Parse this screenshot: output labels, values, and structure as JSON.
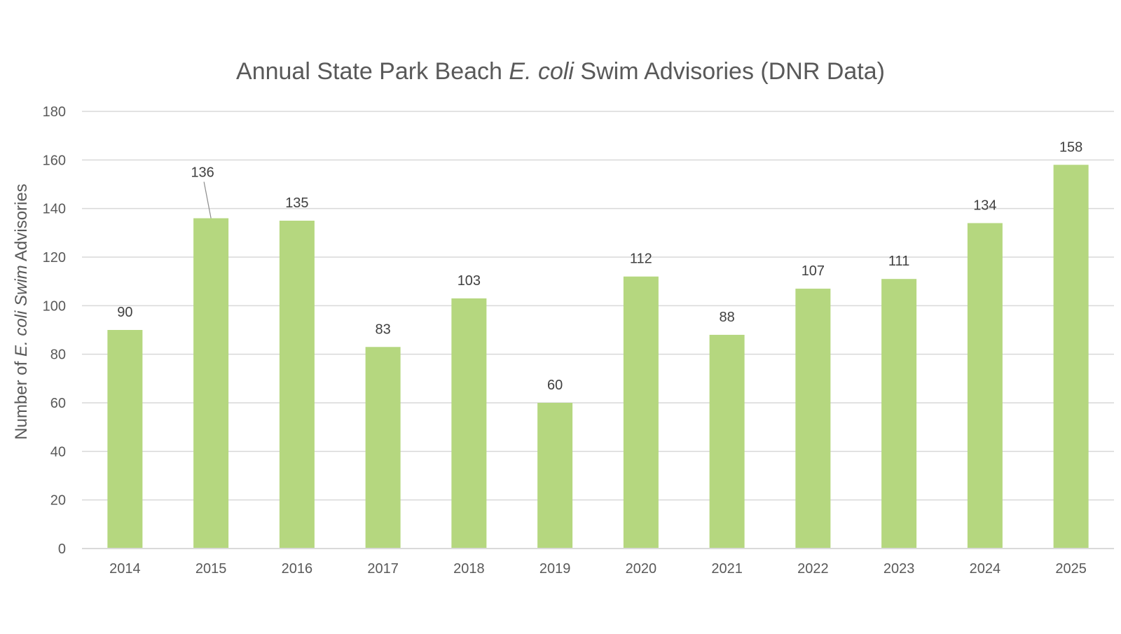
{
  "chart_data": {
    "type": "bar",
    "title": {
      "prefix": "Annual State Park Beach ",
      "italic": "E. coli",
      "suffix": " Swim Advisories (DNR Data)"
    },
    "ylabel": {
      "prefix": "Number of ",
      "italic": "E. coli Swim",
      "suffix": " Advisories"
    },
    "xlabel": "",
    "categories": [
      "2014",
      "2015",
      "2016",
      "2017",
      "2018",
      "2019",
      "2020",
      "2021",
      "2022",
      "2023",
      "2024",
      "2025"
    ],
    "values": [
      90,
      136,
      135,
      83,
      103,
      60,
      112,
      88,
      107,
      111,
      134,
      158
    ],
    "data_labels": [
      "90",
      "136",
      "135",
      "83",
      "103",
      "60",
      "112",
      "88",
      "107",
      "111",
      "134",
      "158"
    ],
    "ylim": [
      0,
      180
    ],
    "yticks": [
      0,
      20,
      40,
      60,
      80,
      100,
      120,
      140,
      160,
      180
    ],
    "ytick_labels": [
      "0",
      "20",
      "40",
      "60",
      "80",
      "100",
      "120",
      "140",
      "160",
      "180"
    ],
    "grid": true,
    "legend": "none",
    "colors": {
      "bar": "#b5d77f",
      "grid": "#d9d9d9",
      "axis": "#d9d9d9",
      "title": "#595959",
      "text": "#404040",
      "axis_label": "#595959",
      "tick": "#595959"
    }
  }
}
